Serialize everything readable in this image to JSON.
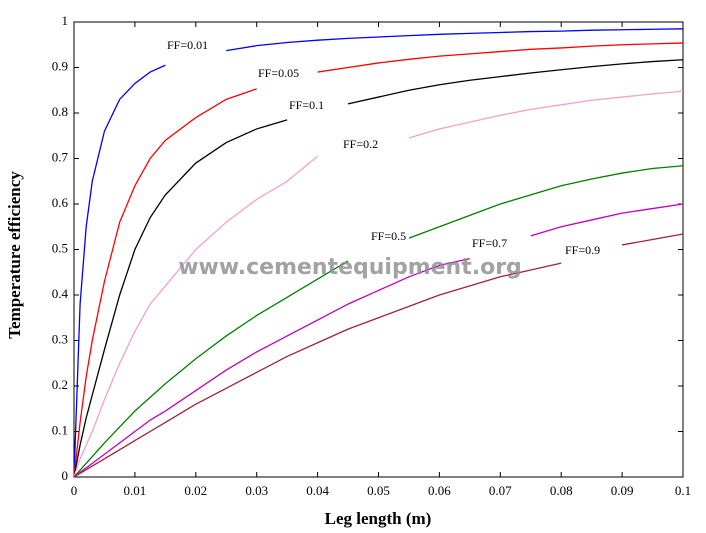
{
  "chart_data": {
    "type": "line",
    "x_label": "Leg length (m)",
    "y_label": "Temperature efficiency",
    "watermark": "www.cementequipment.org",
    "x": [
      0,
      0.001,
      0.002,
      0.003,
      0.005,
      0.0075,
      0.01,
      0.0125,
      0.015,
      0.02,
      0.025,
      0.03,
      0.035,
      0.04,
      0.045,
      0.05,
      0.055,
      0.06,
      0.065,
      0.07,
      0.075,
      0.08,
      0.085,
      0.09,
      0.095,
      0.1
    ],
    "series": [
      {
        "name": "FF=0.01",
        "color": "#0000ff",
        "values": [
          0,
          0.38,
          0.55,
          0.65,
          0.76,
          0.83,
          0.865,
          0.89,
          0.905,
          null,
          0.937,
          0.948,
          0.955,
          0.96,
          0.964,
          0.967,
          0.97,
          0.973,
          0.975,
          0.977,
          0.979,
          0.98,
          0.982,
          0.983,
          0.984,
          0.985
        ]
      },
      {
        "name": "FF=0.05",
        "color": "#ff0000",
        "values": [
          0,
          0.12,
          0.22,
          0.3,
          0.43,
          0.56,
          0.64,
          0.7,
          0.74,
          0.79,
          0.83,
          0.853,
          null,
          0.89,
          0.9,
          0.91,
          0.918,
          0.925,
          0.93,
          0.935,
          0.94,
          0.943,
          0.947,
          0.95,
          0.952,
          0.954
        ]
      },
      {
        "name": "FF=0.1",
        "color": "#000000",
        "values": [
          0,
          0.07,
          0.13,
          0.18,
          0.28,
          0.4,
          0.5,
          0.57,
          0.62,
          0.69,
          0.735,
          0.765,
          0.785,
          null,
          0.82,
          0.835,
          0.85,
          0.862,
          0.872,
          0.88,
          0.888,
          0.895,
          0.902,
          0.908,
          0.913,
          0.917
        ]
      },
      {
        "name": "FF=0.2",
        "color": "#f5a0c8",
        "values": [
          0,
          0.04,
          0.07,
          0.1,
          0.17,
          0.25,
          0.32,
          0.38,
          0.42,
          0.5,
          0.56,
          0.61,
          0.65,
          0.705,
          null,
          null,
          0.745,
          0.765,
          0.78,
          0.795,
          0.808,
          0.818,
          0.828,
          0.835,
          0.842,
          0.848
        ]
      },
      {
        "name": "FF=0.5",
        "color": "#008000",
        "values": [
          0,
          0.015,
          0.03,
          0.045,
          0.075,
          0.11,
          0.145,
          0.175,
          0.205,
          0.26,
          0.31,
          0.355,
          0.395,
          0.435,
          0.475,
          null,
          0.525,
          0.55,
          0.575,
          0.6,
          0.62,
          0.64,
          0.655,
          0.668,
          0.678,
          0.684
        ]
      },
      {
        "name": "FF=0.7",
        "color": "#c000c0",
        "values": [
          0,
          0.01,
          0.02,
          0.03,
          0.05,
          0.075,
          0.1,
          0.125,
          0.145,
          0.19,
          0.235,
          0.275,
          0.31,
          0.345,
          0.38,
          0.41,
          0.44,
          0.465,
          0.48,
          null,
          0.53,
          0.55,
          0.565,
          0.58,
          0.59,
          0.6
        ]
      },
      {
        "name": "FF=0.9",
        "color": "#a02040",
        "values": [
          0,
          0.008,
          0.016,
          0.024,
          0.04,
          0.06,
          0.08,
          0.1,
          0.12,
          0.16,
          0.195,
          0.23,
          0.265,
          0.295,
          0.325,
          0.35,
          0.375,
          0.4,
          0.42,
          0.44,
          0.455,
          0.47,
          null,
          0.51,
          0.522,
          0.534
        ]
      }
    ],
    "xlim": [
      0,
      0.1
    ],
    "xticks": [
      0,
      0.01,
      0.02,
      0.03,
      0.04,
      0.05,
      0.06,
      0.07,
      0.08,
      0.09,
      0.1
    ],
    "ylim": [
      0,
      1
    ],
    "yticks": [
      0,
      0.1,
      0.2,
      0.3,
      0.4,
      0.5,
      0.6,
      0.7,
      0.8,
      0.9,
      1
    ],
    "grid": false
  }
}
